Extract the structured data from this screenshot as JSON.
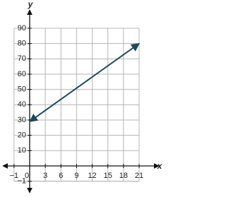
{
  "chart_data": {
    "type": "line",
    "x_label": "x",
    "y_label": "y",
    "x": [
      0,
      21
    ],
    "values": [
      29,
      80
    ],
    "color": "#1d4a5a",
    "xlim": [
      -1,
      21
    ],
    "ylim": [
      -1,
      90
    ],
    "xticks": [
      {
        "value": -1,
        "label": "−1"
      },
      0,
      3,
      6,
      9,
      12,
      15,
      18,
      21
    ],
    "yticks": [
      {
        "value": -1,
        "label": "−1"
      },
      10,
      20,
      30,
      40,
      50,
      60,
      70,
      80,
      90
    ],
    "grid": true
  }
}
